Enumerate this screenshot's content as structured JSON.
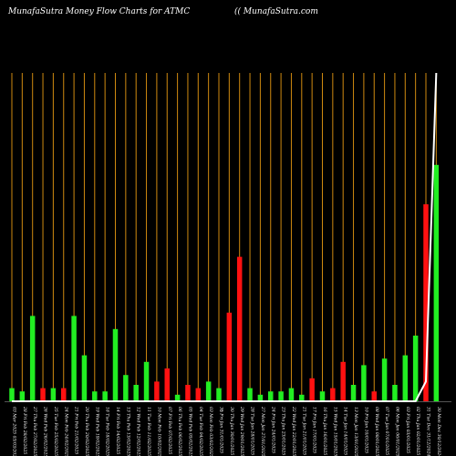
{
  "header": {
    "title": "MunafaSutra  Money Flow  Charts for ATMC",
    "site": "(( MunafaSutra.com"
  },
  "chart_data": {
    "type": "bar",
    "axis_marker": "0",
    "colors": {
      "up": "#22ee22",
      "down": "#ff1111",
      "gridline": "#d08a10",
      "price": "#ffffff",
      "background": "#000000"
    },
    "categories": [
      "03 Mar 2025",
      "28 Fri Feb",
      "27 Thu Feb",
      "26 Wed Feb",
      "25 Tue Feb",
      "24 Mon Feb",
      "21 Fri Feb",
      "20 Thu Feb",
      "19 Wed Feb",
      "18 Tue Feb",
      "14 Fri Feb",
      "13 Thu Feb",
      "12 Wed Feb",
      "11 Tue Feb",
      "10 Mon Feb",
      "07 Fri Feb",
      "06 Thu Feb",
      "05 Wed Feb",
      "04 Tue Feb",
      "03 Mon Feb",
      "31 Fri Jan",
      "30 Thu Jan",
      "29 Wed Jan",
      "28 Tue Jan",
      "27 Mon Jan",
      "24 Fri Jan",
      "23 Thu Jan",
      "22 Wed Jan",
      "21 Tue Jan",
      "17 Fri Jan",
      "16 Thu Jan",
      "15 Wed Jan",
      "14 Tue Jan",
      "13 Mon Jan",
      "10 Fri Jan",
      "08 Wed Jan",
      "07 Tue Jan",
      "06 Mon Jan",
      "03 Fri Jan",
      "02 Thu Jan",
      "31 Tue Dec",
      "30 Mon Dec"
    ],
    "labels": [
      "03/03/2025",
      "28/02/2025",
      "27/02/2025",
      "26/02/2025",
      "25/02/2025",
      "24/02/2025",
      "21/02/2025",
      "20/02/2025",
      "19/02/2025",
      "18/02/2025",
      "14/02/2025",
      "13/02/2025",
      "12/02/2025",
      "11/02/2025",
      "10/02/2025",
      "07/02/2025",
      "06/02/2025",
      "05/02/2025",
      "04/02/2025",
      "03/02/2025",
      "31/01/2025",
      "30/01/2025",
      "29/01/2025",
      "28/01/2025",
      "27/01/2025",
      "24/01/2025",
      "23/01/2025",
      "22/01/2025",
      "21/01/2025",
      "17/01/2025",
      "16/01/2025",
      "15/01/2025",
      "14/01/2025",
      "13/01/2025",
      "10/01/2025",
      "08/01/2025",
      "07/01/2025",
      "06/01/2025",
      "03/01/2025",
      "02/01/2025",
      "31/12/2024",
      "30/12/2024"
    ],
    "values": [
      4,
      3,
      26,
      4,
      4,
      4,
      26,
      14,
      3,
      3,
      22,
      8,
      5,
      12,
      6,
      10,
      2,
      5,
      4,
      6,
      4,
      27,
      44,
      4,
      2,
      3,
      3,
      4,
      2,
      7,
      3,
      4,
      12,
      5,
      11,
      3,
      13,
      5,
      14,
      20,
      60,
      72
    ],
    "directions": [
      "up",
      "up",
      "up",
      "down",
      "up",
      "down",
      "up",
      "up",
      "up",
      "up",
      "up",
      "up",
      "up",
      "up",
      "down",
      "down",
      "up",
      "down",
      "down",
      "up",
      "up",
      "down",
      "down",
      "up",
      "up",
      "up",
      "up",
      "up",
      "up",
      "down",
      "up",
      "down",
      "down",
      "up",
      "up",
      "down",
      "up",
      "up",
      "up",
      "up",
      "down",
      "up"
    ],
    "price_line": [
      0,
      0,
      0,
      0,
      0,
      0,
      0,
      0,
      0,
      0,
      0,
      0,
      0,
      0,
      0,
      0,
      0,
      0,
      0,
      0,
      0,
      0,
      0,
      0,
      0,
      0,
      0,
      0,
      0,
      0,
      0,
      0,
      0,
      0,
      0,
      0,
      0,
      0,
      0,
      0,
      6,
      100
    ],
    "ylim": [
      0,
      100
    ]
  }
}
